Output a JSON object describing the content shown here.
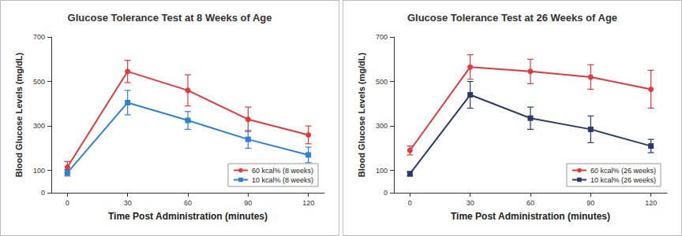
{
  "chart_data": [
    {
      "type": "line",
      "title": "Glucose Tolerance Test at 8 Weeks of Age",
      "x_label": "Time Post Administration (minutes)",
      "y_label": "Blood Glucose Levels (mg/dL)",
      "x": [
        0,
        30,
        60,
        90,
        120
      ],
      "xlim": [
        -8,
        128
      ],
      "xticks": [
        0,
        30,
        60,
        90,
        120
      ],
      "ylim": [
        0,
        700
      ],
      "yticks": [
        0,
        100,
        300,
        500,
        700
      ],
      "grid": false,
      "legend": "lower right",
      "series": [
        {
          "name": "60 kcal% (8 weeks)",
          "color": "#e0393e",
          "marker": "circle",
          "line_style": "solid",
          "values": [
            115,
            545,
            460,
            330,
            260
          ],
          "errors": [
            25,
            50,
            70,
            55,
            40
          ]
        },
        {
          "name": "10 kcal% (8 weeks)",
          "color": "#2f80d0",
          "marker": "square",
          "line_style": "solid",
          "values": [
            90,
            405,
            325,
            240,
            170
          ],
          "errors": [
            15,
            55,
            40,
            40,
            35
          ]
        }
      ]
    },
    {
      "type": "line",
      "title": "Glucose Tolerance Test at 26 Weeks of Age",
      "x_label": "Time Post Administration (minutes)",
      "y_label": "Blood Glucose Levels (mg/dL)",
      "x": [
        0,
        30,
        60,
        90,
        120
      ],
      "xlim": [
        -8,
        128
      ],
      "xticks": [
        0,
        30,
        60,
        90,
        120
      ],
      "ylim": [
        0,
        700
      ],
      "yticks": [
        0,
        100,
        300,
        500,
        700
      ],
      "grid": false,
      "legend": "lower right",
      "series": [
        {
          "name": "60 kcal% (26 weeks)",
          "color": "#e0393e",
          "marker": "circle",
          "line_style": "solid",
          "values": [
            190,
            565,
            545,
            520,
            465
          ],
          "errors": [
            20,
            55,
            55,
            55,
            85
          ]
        },
        {
          "name": "10 kcal% (26 weeks)",
          "color": "#2b3a67",
          "marker": "square",
          "line_style": "solid",
          "values": [
            85,
            440,
            335,
            285,
            210
          ],
          "errors": [
            10,
            60,
            50,
            60,
            30
          ]
        }
      ]
    }
  ]
}
